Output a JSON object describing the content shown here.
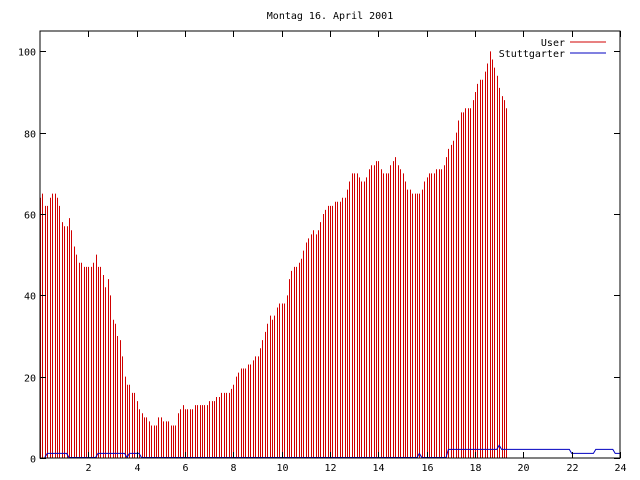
{
  "chart_data": {
    "type": "bar",
    "title": "Montag 16. April 2001",
    "xlabel": "",
    "ylabel": "",
    "xlim": [
      0,
      24
    ],
    "ylim": [
      0,
      105
    ],
    "grid": false,
    "legend_position": "top-right",
    "x_ticks": [
      2,
      4,
      6,
      8,
      10,
      12,
      14,
      16,
      18,
      20,
      22,
      24
    ],
    "x_tick_labels": [
      "2",
      "4",
      "6",
      "8",
      "10",
      "12",
      "14",
      "16",
      "18",
      "20",
      "22",
      "24"
    ],
    "y_ticks": [
      0,
      20,
      40,
      60,
      80,
      100
    ],
    "y_tick_labels": [
      "0",
      "20",
      "40",
      "60",
      "80",
      "100"
    ],
    "series": [
      {
        "name": "User",
        "color": "#d00000",
        "style": "impulses",
        "x_start": 0,
        "x_step": 0.1,
        "values": [
          64,
          65,
          62,
          62,
          64,
          65,
          65,
          64,
          62,
          58,
          57,
          57,
          59,
          56,
          52,
          50,
          48,
          48,
          47,
          47,
          47,
          47,
          48,
          50,
          47,
          47,
          45,
          42,
          44,
          40,
          34,
          33,
          30,
          29,
          25,
          20,
          18,
          18,
          16,
          16,
          14,
          12,
          11,
          10,
          10,
          9,
          8,
          8,
          8,
          10,
          10,
          9,
          9,
          9,
          8,
          8,
          8,
          11,
          12,
          13,
          12,
          12,
          12,
          12,
          13,
          13,
          13,
          13,
          13,
          13,
          14,
          14,
          14,
          15,
          15,
          16,
          16,
          16,
          16,
          17,
          18,
          20,
          21,
          22,
          22,
          22,
          23,
          23,
          24,
          25,
          25,
          27,
          29,
          31,
          33,
          35,
          34,
          35,
          37,
          38,
          38,
          38,
          40,
          44,
          46,
          47,
          47,
          48,
          49,
          51,
          53,
          54,
          55,
          56,
          55,
          56,
          58,
          60,
          61,
          62,
          62,
          62,
          63,
          63,
          63,
          64,
          64,
          66,
          68,
          70,
          70,
          70,
          69,
          68,
          68,
          69,
          71,
          72,
          72,
          73,
          73,
          71,
          70,
          70,
          70,
          72,
          73,
          74,
          72,
          71,
          70,
          68,
          66,
          66,
          65,
          65,
          65,
          65,
          66,
          68,
          69,
          70,
          70,
          70,
          71,
          71,
          71,
          72,
          74,
          76,
          77,
          78,
          80,
          83,
          85,
          85,
          86,
          86,
          86,
          88,
          90,
          92,
          93,
          93,
          95,
          97,
          100,
          98,
          96,
          94,
          91,
          89,
          88,
          86
        ]
      },
      {
        "name": "Stuttgarter",
        "color": "#0000c0",
        "style": "line",
        "points": [
          [
            0.2,
            0
          ],
          [
            0.3,
            1
          ],
          [
            1.1,
            1
          ],
          [
            1.2,
            0
          ],
          [
            2.3,
            0
          ],
          [
            2.4,
            1
          ],
          [
            3.5,
            1
          ],
          [
            3.6,
            0
          ],
          [
            3.7,
            1
          ],
          [
            4.1,
            1
          ],
          [
            4.2,
            0
          ],
          [
            15.6,
            0
          ],
          [
            15.7,
            1
          ],
          [
            15.8,
            0
          ],
          [
            16.8,
            0
          ],
          [
            16.9,
            2
          ],
          [
            18.9,
            2
          ],
          [
            19,
            3
          ],
          [
            19.1,
            2
          ],
          [
            21.9,
            2
          ],
          [
            22,
            1
          ],
          [
            22.9,
            1
          ],
          [
            23,
            2
          ],
          [
            23.7,
            2
          ],
          [
            23.8,
            1
          ],
          [
            24,
            1
          ]
        ]
      }
    ]
  }
}
